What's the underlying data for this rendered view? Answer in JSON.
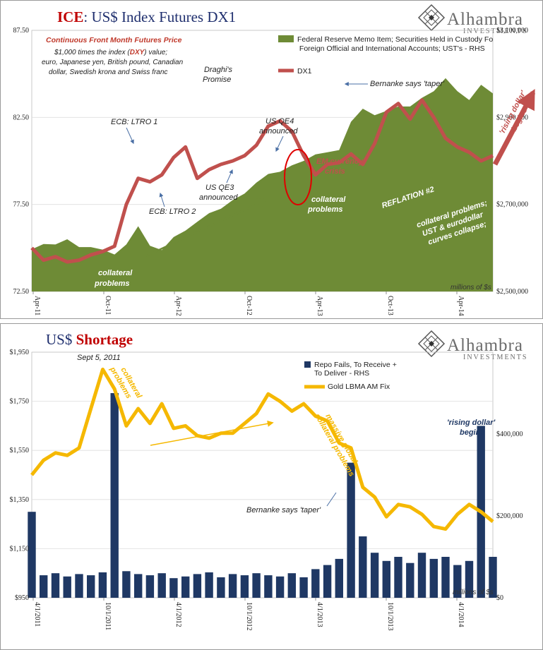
{
  "charts": [
    {
      "title_part1": "ICE",
      "title_part2": ": US$ Index Futures DX1",
      "title_color1": "#c00000",
      "title_color2": "#1f2f6e",
      "logo": {
        "name": "Alhambra",
        "sub": "INVESTMENTS",
        "icon": "diamond-grid-logo"
      },
      "subtitle": {
        "line1": "Continuous  Front Month Futures Price",
        "line2a": "$1,000 times the index (",
        "line2b": "DXY",
        "line2c": ") value;",
        "line3": "euro, Japanese yen, British pound, Canadian",
        "line4": "dollar, Swedish krona and Swiss franc"
      },
      "units_label": "millions of $s",
      "colors": {
        "area": "#6e8b36",
        "line": "#c0504d",
        "arrow": "#6e8b36",
        "annotation_red": "#c0504d"
      }
    },
    {
      "title_part1": "US$ ",
      "title_part2": "Shortage",
      "title_color1": "#1f2f6e",
      "title_color2": "#c00000",
      "logo": {
        "name": "Alhambra",
        "sub": "INVESTMENTS",
        "icon": "diamond-grid-logo"
      },
      "units_label": "millions of $s",
      "colors": {
        "bar": "#1f3864",
        "line": "#f5b800",
        "arrow": "#f5b800"
      }
    }
  ],
  "chart_data": [
    {
      "type": "line",
      "x_tick_labels": [
        "Apr-11",
        "Oct-11",
        "Apr-12",
        "Oct-12",
        "Apr-13",
        "Oct-13",
        "Apr-14"
      ],
      "x_range": [
        0,
        39
      ],
      "y_left": {
        "ticks": [
          "72.50",
          "77.50",
          "82.50",
          "87.50"
        ],
        "range": [
          72.5,
          87.5
        ]
      },
      "y_right": {
        "ticks": [
          "$2,500,000",
          "$2,700,000",
          "$2,900,000",
          "$3,100,000"
        ],
        "range": [
          2500000,
          3100000
        ]
      },
      "legend": {
        "position": "top-right"
      },
      "series": [
        {
          "name": "Federal Reserve Memo Item; Securities Held in Custody For Foreign Official and International Accounts; UST's - RHS",
          "axis": "right",
          "style": "area",
          "x": [
            0,
            1,
            2,
            3,
            4,
            5,
            6,
            7,
            8,
            9,
            10,
            11,
            12,
            13,
            14,
            15,
            16,
            17,
            18,
            19,
            20,
            21,
            22,
            23,
            24,
            25,
            26,
            27,
            28,
            29,
            30,
            31,
            32,
            33,
            34,
            35,
            36,
            37,
            38,
            39
          ],
          "values": [
            2597000,
            2609000,
            2608000,
            2620000,
            2602000,
            2602000,
            2596000,
            2585000,
            2608000,
            2650000,
            2605000,
            2595000,
            2625000,
            2640000,
            2660000,
            2680000,
            2690000,
            2710000,
            2725000,
            2750000,
            2770000,
            2775000,
            2790000,
            2800000,
            2815000,
            2820000,
            2825000,
            2890000,
            2920000,
            2905000,
            2915000,
            2925000,
            2925000,
            2945000,
            2960000,
            2990000,
            2960000,
            2940000,
            2975000,
            2955000
          ],
          "annotations": [
            "collateral problems",
            "collateral problems",
            "REFLATION #2",
            "collateral problems; UST & eurodollar curves collapse;"
          ]
        },
        {
          "name": "DX1",
          "axis": "left",
          "style": "line",
          "x": [
            0,
            1,
            2,
            3,
            4,
            5,
            6,
            7,
            8,
            9,
            10,
            11,
            12,
            13,
            14,
            15,
            16,
            17,
            18,
            19,
            20,
            21,
            22,
            23,
            24,
            25,
            26,
            27,
            28,
            29,
            30,
            31,
            32,
            33,
            34,
            35,
            36,
            37,
            38,
            39
          ],
          "values": [
            75.0,
            74.3,
            74.5,
            74.2,
            74.3,
            74.6,
            74.8,
            75.1,
            77.5,
            79.0,
            78.8,
            79.2,
            80.2,
            80.8,
            79.0,
            79.5,
            79.8,
            80.0,
            80.3,
            80.9,
            82.0,
            82.3,
            81.7,
            80.3,
            79.2,
            79.8,
            79.9,
            80.4,
            79.8,
            81.0,
            82.8,
            83.3,
            82.4,
            83.5,
            82.5,
            81.3,
            80.8,
            80.5,
            80.0,
            80.3
          ],
          "annotations": [
            "ECB: LTRO 1",
            "ECB: LTRO 2",
            "Draghi's Promise",
            "US QE3 announced",
            "US QE4 announced",
            "EM currency crisis",
            "Bernanke says 'taper'",
            "'rising dollar' begins"
          ]
        }
      ]
    },
    {
      "type": "bar",
      "x_tick_labels": [
        "4/1/2011",
        "10/1/2011",
        "4/1/2012",
        "10/1/2012",
        "4/1/2013",
        "10/1/2013",
        "4/1/2014"
      ],
      "x_range": [
        0,
        39
      ],
      "y_left": {
        "ticks": [
          "$950",
          "$1,150",
          "$1,350",
          "$1,550",
          "$1,750",
          "$1,950"
        ],
        "range": [
          950,
          1950
        ]
      },
      "y_right": {
        "ticks": [
          "$0",
          "$200,000",
          "$400,000"
        ],
        "range": [
          0,
          600000
        ]
      },
      "legend": {
        "position": "top-right"
      },
      "series": [
        {
          "name": "Repo Fails, To Receive + To Deliver - RHS",
          "axis": "right",
          "style": "bar",
          "x": [
            0,
            1,
            2,
            3,
            4,
            5,
            6,
            7,
            8,
            9,
            10,
            11,
            12,
            13,
            14,
            15,
            16,
            17,
            18,
            19,
            20,
            21,
            22,
            23,
            24,
            25,
            26,
            27,
            28,
            29,
            30,
            31,
            32,
            33,
            34,
            35,
            36,
            37,
            38,
            39
          ],
          "values": [
            210000,
            55000,
            60000,
            52000,
            58000,
            55000,
            62000,
            500000,
            65000,
            58000,
            55000,
            60000,
            48000,
            52000,
            58000,
            62000,
            50000,
            58000,
            55000,
            60000,
            55000,
            52000,
            60000,
            50000,
            70000,
            80000,
            95000,
            330000,
            150000,
            110000,
            90000,
            100000,
            85000,
            110000,
            95000,
            100000,
            80000,
            90000,
            420000,
            100000
          ],
          "annotations": [
            "'rising dollar' begins"
          ]
        },
        {
          "name": "Gold LBMA AM Fix",
          "axis": "left",
          "style": "line",
          "x": [
            0,
            1,
            2,
            3,
            4,
            5,
            6,
            7,
            8,
            9,
            10,
            11,
            12,
            13,
            14,
            15,
            16,
            17,
            18,
            19,
            20,
            21,
            22,
            23,
            24,
            25,
            26,
            27,
            28,
            29,
            30,
            31,
            32,
            33,
            34,
            35,
            36,
            37,
            38,
            39
          ],
          "values": [
            1450,
            1510,
            1540,
            1530,
            1560,
            1720,
            1880,
            1800,
            1650,
            1720,
            1660,
            1740,
            1640,
            1650,
            1610,
            1600,
            1620,
            1620,
            1660,
            1700,
            1780,
            1750,
            1710,
            1740,
            1690,
            1670,
            1580,
            1560,
            1400,
            1360,
            1280,
            1330,
            1320,
            1290,
            1240,
            1230,
            1290,
            1330,
            1300,
            1260
          ],
          "annotations": [
            "Sept 5, 2011",
            "collateral problems",
            "massive global collateral problems",
            "Bernanke says 'taper'"
          ]
        }
      ]
    }
  ]
}
